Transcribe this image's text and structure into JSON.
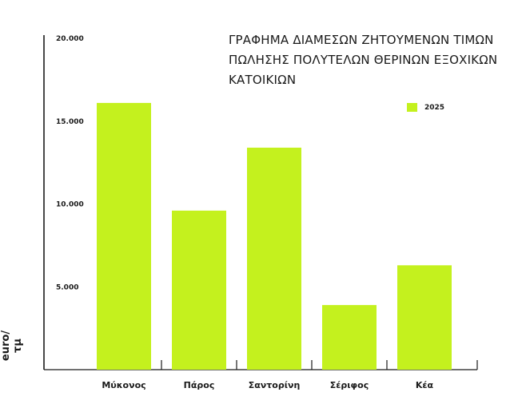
{
  "chart_data": {
    "type": "bar",
    "title_lines": [
      "ΓΡΑΦΗΜΑ ΔΙΑΜΕΣΩΝ ΖΗΤΟΥΜΕΝΩΝ ΤΙΜΩΝ",
      "ΠΩΛΗΣΗΣ ΠΟΛΥΤΕΛΩΝ ΘΕΡΙΝΩΝ ΕΞΟΧΙΚΩΝ",
      "ΚΑΤΟΙΚΙΩΝ"
    ],
    "ylabel": "euro/τμ",
    "xlabel": "",
    "ylim": [
      0,
      20000
    ],
    "yticks": [
      {
        "value": 5000,
        "label": "5.000"
      },
      {
        "value": 10000,
        "label": "10.000"
      },
      {
        "value": 15000,
        "label": "15.000"
      },
      {
        "value": 20000,
        "label": "20.000"
      }
    ],
    "categories": [
      "Μύκονος",
      "Πάρος",
      "Σαντορίνη",
      "Σέριφος",
      "Κέα"
    ],
    "series": [
      {
        "name": "2025",
        "color": "#c4f11e",
        "values": [
          16100,
          9600,
          13400,
          3900,
          6300
        ]
      }
    ],
    "legend_position": "top-right",
    "grid": false
  }
}
